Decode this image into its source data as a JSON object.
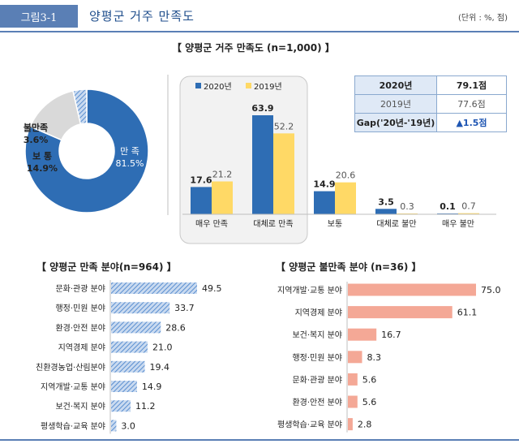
{
  "header": {
    "figure_tag": "그림3-1",
    "title": "양평군 거주 만족도",
    "unit": "(단위 : %, 점)"
  },
  "sections": {
    "overall": "【 양평군 거주 만족도 (n=1,000) 】",
    "satisfied": "【 양평군 만족 분야(n=964) 】",
    "dissatisfied": "【 양평군 불만족 분야 (n=36) 】"
  },
  "colors": {
    "blue": "#2e6db4",
    "yellow": "#ffd966",
    "grey": "#d9d9d9",
    "salmon": "#f4a896",
    "hatch": "#5b8fd0",
    "title_blue": "#1f4e8c"
  },
  "score_table": [
    {
      "label": "2020년",
      "value": "79.1점"
    },
    {
      "label": "2019년",
      "value": "77.6점"
    },
    {
      "label": "Gap('20년-'19년)",
      "value": "▲1.5점"
    }
  ],
  "chart_data": [
    {
      "type": "pie",
      "slices": [
        {
          "label": "만 족",
          "value": 81.5,
          "value_text": "81.5%"
        },
        {
          "label": "보 통",
          "value": 14.9,
          "value_text": "14.9%"
        },
        {
          "label": "불만족",
          "value": 3.6,
          "value_text": "3.6%"
        }
      ]
    },
    {
      "type": "bar",
      "categories": [
        "매우 만족",
        "대체로 만족",
        "보통",
        "대체로 불만",
        "매우 불만"
      ],
      "series": [
        {
          "name": "2020년",
          "values": [
            17.6,
            63.9,
            14.9,
            3.5,
            0.1
          ]
        },
        {
          "name": "2019년",
          "values": [
            21.2,
            52.2,
            20.6,
            0.3,
            0.7
          ]
        }
      ],
      "legend": "top-left"
    },
    {
      "type": "bar",
      "orientation": "horizontal",
      "categories": [
        "문화·관광 분야",
        "행정·민원 분야",
        "환경·안전 분야",
        "지역경제 분야",
        "친환경농업·산림분야",
        "지역개발·교통 분야",
        "보건·복지 분야",
        "평생학습·교육 분야"
      ],
      "values": [
        49.5,
        33.7,
        28.6,
        21.0,
        19.4,
        14.9,
        11.2,
        3.0
      ],
      "value_labels": [
        "49.5",
        "33.7",
        "28.6",
        "21.0",
        "19.4",
        "14.9",
        "11.2",
        "3.0"
      ]
    },
    {
      "type": "bar",
      "orientation": "horizontal",
      "categories": [
        "지역개발·교통 분야",
        "지역경제 분야",
        "보건·복지 분야",
        "행정·민원 분야",
        "문화·관광 분야",
        "환경·안전 분야",
        "평생학습·교육 분야"
      ],
      "values": [
        75.0,
        61.1,
        16.7,
        8.3,
        5.6,
        5.6,
        2.8
      ],
      "value_labels": [
        "75.0",
        "61.1",
        "16.7",
        "8.3",
        "5.6",
        "5.6",
        "2.8"
      ]
    }
  ]
}
